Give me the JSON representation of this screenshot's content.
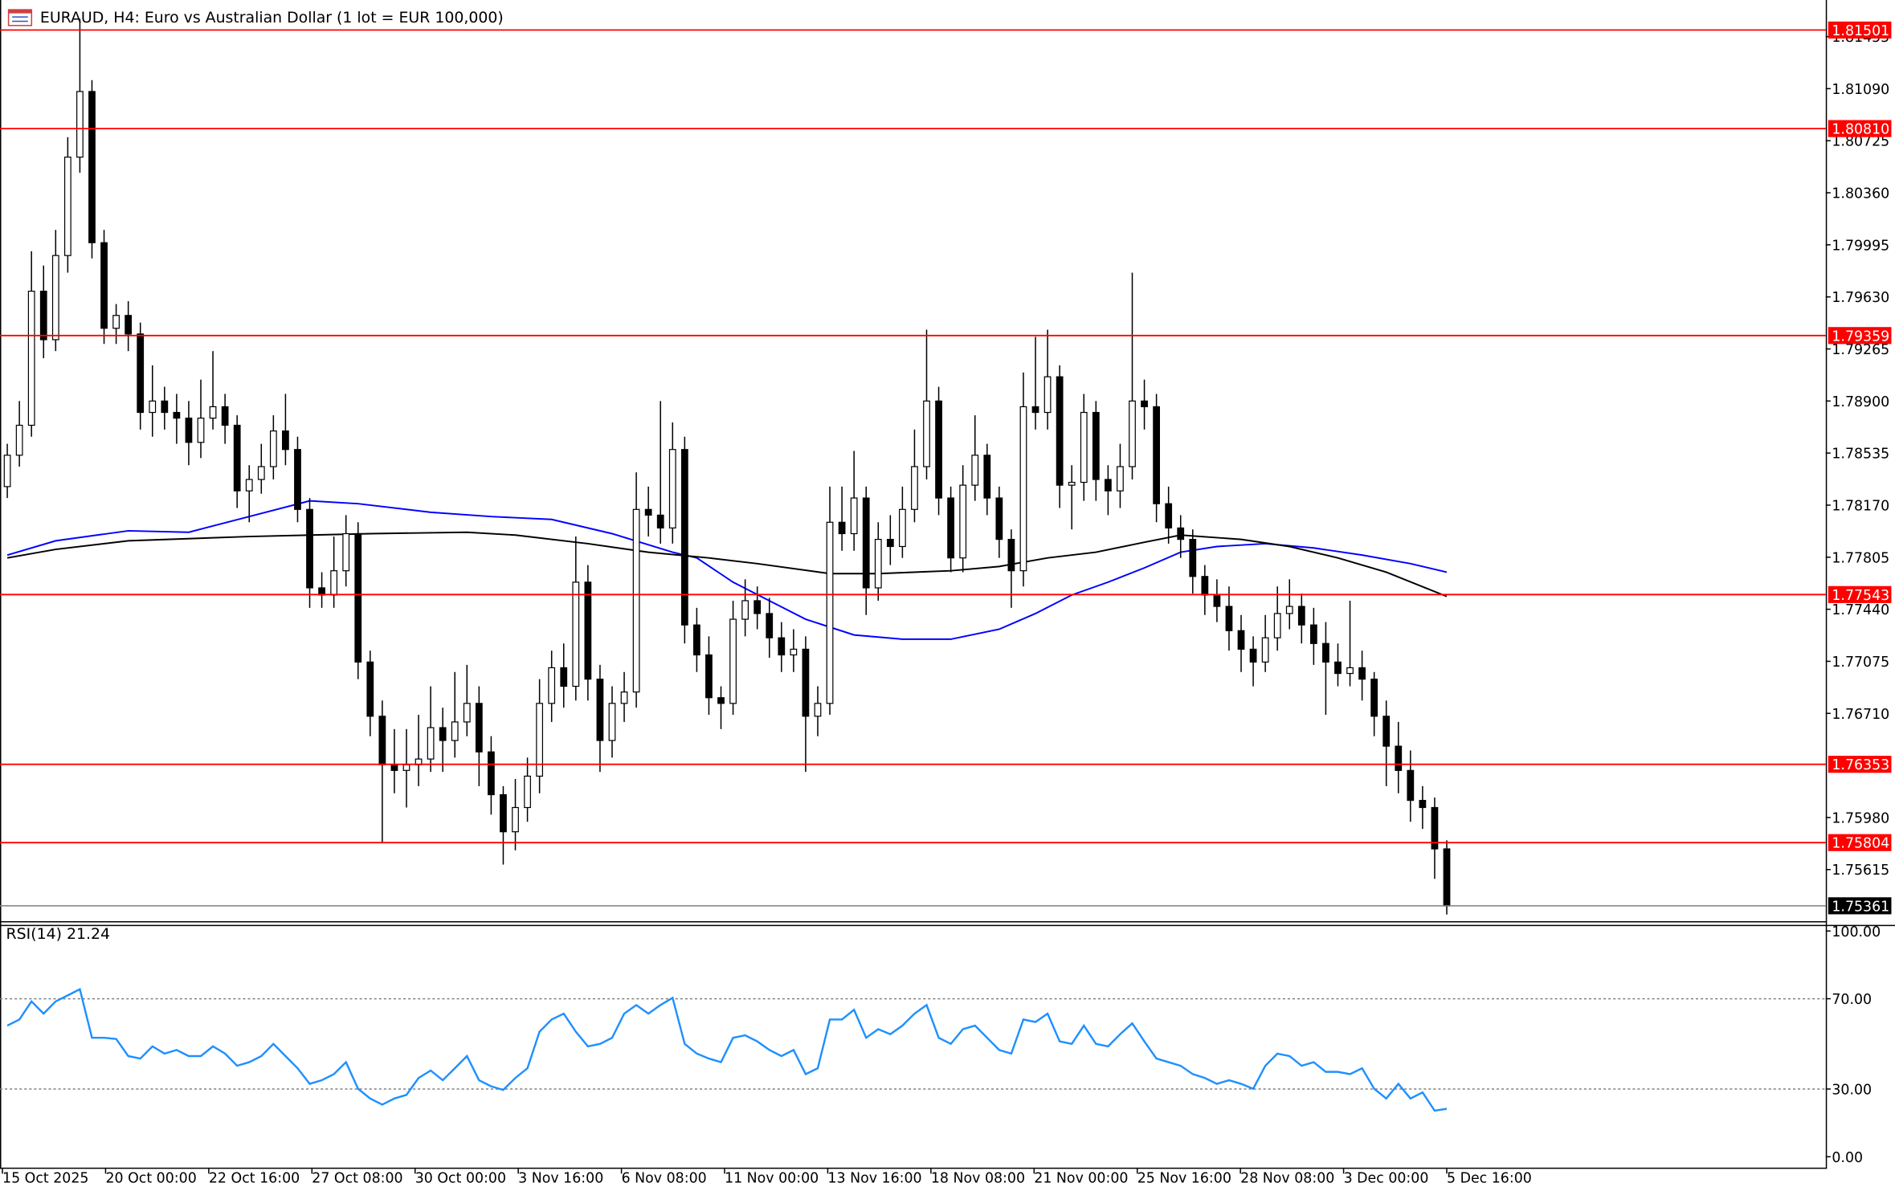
{
  "chart_data": {
    "type": "candlestick",
    "title": "EURAUD, H4:  Euro vs Australian Dollar (1 lot = EUR 100,000)",
    "up_color": "#ffffff",
    "down_color": "#000000",
    "candles": [
      [
        1.783,
        1.786,
        1.7822,
        1.7852
      ],
      [
        1.7852,
        1.789,
        1.7844,
        1.7873
      ],
      [
        1.7873,
        1.7995,
        1.7865,
        1.7967
      ],
      [
        1.7967,
        1.7985,
        1.792,
        1.7933
      ],
      [
        1.7933,
        1.801,
        1.7925,
        1.7992
      ],
      [
        1.7992,
        1.8075,
        1.798,
        1.8061
      ],
      [
        1.8061,
        1.8158,
        1.805,
        1.8107
      ],
      [
        1.8107,
        1.8115,
        1.799,
        1.8001
      ],
      [
        1.8001,
        1.801,
        1.793,
        1.7941
      ],
      [
        1.7941,
        1.7958,
        1.793,
        1.795
      ],
      [
        1.795,
        1.796,
        1.7925,
        1.7937
      ],
      [
        1.7937,
        1.7945,
        1.787,
        1.7882
      ],
      [
        1.7882,
        1.7915,
        1.7865,
        1.789
      ],
      [
        1.789,
        1.79,
        1.787,
        1.7882
      ],
      [
        1.7882,
        1.7895,
        1.786,
        1.7878
      ],
      [
        1.7878,
        1.789,
        1.7845,
        1.7861
      ],
      [
        1.7861,
        1.7905,
        1.785,
        1.7878
      ],
      [
        1.7878,
        1.7925,
        1.787,
        1.7886
      ],
      [
        1.7886,
        1.7895,
        1.786,
        1.7873
      ],
      [
        1.7873,
        1.788,
        1.7815,
        1.7827
      ],
      [
        1.7827,
        1.7845,
        1.7805,
        1.7835
      ],
      [
        1.7835,
        1.786,
        1.7825,
        1.7844
      ],
      [
        1.7844,
        1.788,
        1.7835,
        1.7869
      ],
      [
        1.7869,
        1.7895,
        1.7845,
        1.7856
      ],
      [
        1.7856,
        1.7865,
        1.7805,
        1.7814
      ],
      [
        1.7814,
        1.7822,
        1.7745,
        1.7759
      ],
      [
        1.7759,
        1.777,
        1.7745,
        1.7754
      ],
      [
        1.7754,
        1.7795,
        1.7745,
        1.7771
      ],
      [
        1.7771,
        1.781,
        1.776,
        1.7797
      ],
      [
        1.7797,
        1.7805,
        1.7695,
        1.7707
      ],
      [
        1.7707,
        1.7715,
        1.7655,
        1.7669
      ],
      [
        1.7669,
        1.768,
        1.758,
        1.7635
      ],
      [
        1.7635,
        1.766,
        1.7615,
        1.7631
      ],
      [
        1.7631,
        1.766,
        1.7605,
        1.7635
      ],
      [
        1.7635,
        1.767,
        1.762,
        1.7639
      ],
      [
        1.7639,
        1.769,
        1.763,
        1.7661
      ],
      [
        1.7661,
        1.7675,
        1.763,
        1.7652
      ],
      [
        1.7652,
        1.77,
        1.764,
        1.7665
      ],
      [
        1.7665,
        1.7705,
        1.7655,
        1.7678
      ],
      [
        1.7678,
        1.769,
        1.762,
        1.7644
      ],
      [
        1.7644,
        1.7655,
        1.76,
        1.7614
      ],
      [
        1.7614,
        1.762,
        1.7565,
        1.7588
      ],
      [
        1.7588,
        1.7625,
        1.7575,
        1.7605
      ],
      [
        1.7605,
        1.764,
        1.7595,
        1.7627
      ],
      [
        1.7627,
        1.7695,
        1.7615,
        1.7678
      ],
      [
        1.7678,
        1.7715,
        1.7665,
        1.7703
      ],
      [
        1.7703,
        1.772,
        1.7675,
        1.769
      ],
      [
        1.769,
        1.7795,
        1.768,
        1.7763
      ],
      [
        1.7763,
        1.7775,
        1.768,
        1.7695
      ],
      [
        1.7695,
        1.7705,
        1.763,
        1.7652
      ],
      [
        1.7652,
        1.769,
        1.764,
        1.7678
      ],
      [
        1.7678,
        1.77,
        1.7665,
        1.7686
      ],
      [
        1.7686,
        1.784,
        1.7675,
        1.7814
      ],
      [
        1.7814,
        1.783,
        1.7795,
        1.781
      ],
      [
        1.781,
        1.789,
        1.779,
        1.7801
      ],
      [
        1.7801,
        1.7875,
        1.779,
        1.7856
      ],
      [
        1.7856,
        1.7865,
        1.772,
        1.7733
      ],
      [
        1.7733,
        1.7745,
        1.77,
        1.7712
      ],
      [
        1.7712,
        1.7725,
        1.767,
        1.7682
      ],
      [
        1.7682,
        1.769,
        1.766,
        1.7678
      ],
      [
        1.7678,
        1.775,
        1.767,
        1.7737
      ],
      [
        1.7737,
        1.7765,
        1.7725,
        1.775
      ],
      [
        1.775,
        1.776,
        1.773,
        1.7741
      ],
      [
        1.7741,
        1.7752,
        1.771,
        1.7724
      ],
      [
        1.7724,
        1.7735,
        1.77,
        1.7712
      ],
      [
        1.7712,
        1.773,
        1.77,
        1.7716
      ],
      [
        1.7716,
        1.7725,
        1.763,
        1.7669
      ],
      [
        1.7669,
        1.769,
        1.7655,
        1.7678
      ],
      [
        1.7678,
        1.783,
        1.767,
        1.7805
      ],
      [
        1.7805,
        1.783,
        1.7785,
        1.7797
      ],
      [
        1.7797,
        1.7855,
        1.7785,
        1.7822
      ],
      [
        1.7822,
        1.783,
        1.774,
        1.7759
      ],
      [
        1.7759,
        1.7805,
        1.775,
        1.7793
      ],
      [
        1.7793,
        1.781,
        1.7775,
        1.7788
      ],
      [
        1.7788,
        1.783,
        1.778,
        1.7814
      ],
      [
        1.7814,
        1.787,
        1.7805,
        1.7844
      ],
      [
        1.7844,
        1.794,
        1.7835,
        1.789
      ],
      [
        1.789,
        1.79,
        1.781,
        1.7822
      ],
      [
        1.7822,
        1.783,
        1.777,
        1.778
      ],
      [
        1.778,
        1.7845,
        1.777,
        1.7831
      ],
      [
        1.7831,
        1.788,
        1.782,
        1.7852
      ],
      [
        1.7852,
        1.786,
        1.781,
        1.7822
      ],
      [
        1.7822,
        1.783,
        1.778,
        1.7793
      ],
      [
        1.7793,
        1.78,
        1.7745,
        1.7771
      ],
      [
        1.7771,
        1.791,
        1.776,
        1.7886
      ],
      [
        1.7886,
        1.7935,
        1.787,
        1.7882
      ],
      [
        1.7882,
        1.794,
        1.787,
        1.7907
      ],
      [
        1.7907,
        1.7915,
        1.7815,
        1.7831
      ],
      [
        1.7831,
        1.7845,
        1.78,
        1.7833
      ],
      [
        1.7833,
        1.7895,
        1.782,
        1.7882
      ],
      [
        1.7882,
        1.789,
        1.782,
        1.7835
      ],
      [
        1.7835,
        1.7845,
        1.781,
        1.7827
      ],
      [
        1.7827,
        1.786,
        1.7815,
        1.7844
      ],
      [
        1.7844,
        1.798,
        1.7835,
        1.789
      ],
      [
        1.789,
        1.7905,
        1.787,
        1.7886
      ],
      [
        1.7886,
        1.7895,
        1.7805,
        1.7818
      ],
      [
        1.7818,
        1.783,
        1.779,
        1.7801
      ],
      [
        1.7801,
        1.781,
        1.778,
        1.7793
      ],
      [
        1.7793,
        1.78,
        1.7755,
        1.7767
      ],
      [
        1.7767,
        1.7775,
        1.774,
        1.7754
      ],
      [
        1.7754,
        1.7765,
        1.7735,
        1.7746
      ],
      [
        1.7746,
        1.776,
        1.7715,
        1.7729
      ],
      [
        1.7729,
        1.774,
        1.77,
        1.7716
      ],
      [
        1.7716,
        1.7725,
        1.769,
        1.7707
      ],
      [
        1.7707,
        1.774,
        1.77,
        1.7724
      ],
      [
        1.7724,
        1.776,
        1.7715,
        1.7741
      ],
      [
        1.7741,
        1.7765,
        1.773,
        1.7746
      ],
      [
        1.7746,
        1.7755,
        1.772,
        1.7733
      ],
      [
        1.7733,
        1.7745,
        1.7705,
        1.772
      ],
      [
        1.772,
        1.7735,
        1.767,
        1.7707
      ],
      [
        1.7707,
        1.772,
        1.769,
        1.7699
      ],
      [
        1.7699,
        1.775,
        1.769,
        1.7703
      ],
      [
        1.7703,
        1.7715,
        1.768,
        1.7695
      ],
      [
        1.7695,
        1.77,
        1.7655,
        1.7669
      ],
      [
        1.7669,
        1.768,
        1.762,
        1.7648
      ],
      [
        1.7648,
        1.7665,
        1.7615,
        1.7631
      ],
      [
        1.7631,
        1.7645,
        1.7595,
        1.761
      ],
      [
        1.761,
        1.762,
        1.759,
        1.7605
      ],
      [
        1.7605,
        1.7612,
        1.7555,
        1.7576
      ],
      [
        1.7576,
        1.7582,
        1.753,
        1.7536
      ]
    ],
    "ylim": [
      1.75253,
      1.81686
    ],
    "yticks": [
      1.81455,
      {
        "value": 1.8109,
        "label": "1.81090"
      },
      1.80725,
      {
        "value": 1.8036,
        "label": "1.80360"
      },
      1.79995,
      {
        "value": 1.7963,
        "label": "1.79630"
      },
      1.79265,
      {
        "value": 1.789,
        "label": "1.78900"
      },
      1.78535,
      {
        "value": 1.7817,
        "label": "1.78170"
      },
      1.77805,
      {
        "value": 1.7744,
        "label": "1.77440"
      },
      1.77075,
      {
        "value": 1.7671,
        "label": "1.76710"
      },
      {
        "value": 1.7598,
        "label": "1.75980"
      },
      1.75615
    ],
    "levels": {
      "color": "#ff0000",
      "values": [
        1.81501,
        {
          "value": 1.8081,
          "label": "1.80810"
        },
        1.79359,
        1.77543,
        1.76353,
        1.75804
      ]
    },
    "current_price": 1.75361,
    "moving_averages": [
      {
        "color": "#0000ff",
        "x": [
          0,
          4,
          10,
          15,
          20,
          25,
          29,
          35,
          40,
          45,
          50,
          55,
          57,
          60,
          63,
          66,
          70,
          74,
          78,
          82,
          85,
          88,
          91,
          94,
          97,
          100,
          104,
          108,
          112,
          116,
          119
        ],
        "values": [
          1.7782,
          1.7792,
          1.7799,
          1.7798,
          1.7809,
          1.782,
          1.7818,
          1.7812,
          1.7809,
          1.7807,
          1.7797,
          1.7784,
          1.778,
          1.7763,
          1.775,
          1.7737,
          1.7726,
          1.7723,
          1.7723,
          1.773,
          1.7741,
          1.7754,
          1.7763,
          1.7773,
          1.7784,
          1.7788,
          1.779,
          1.7787,
          1.7782,
          1.7776,
          1.777
        ]
      },
      {
        "color": "#000000",
        "x": [
          0,
          4,
          10,
          20,
          30,
          38,
          42,
          48,
          53,
          58,
          62,
          68,
          72,
          78,
          82,
          86,
          90,
          94,
          97,
          102,
          106,
          110,
          114,
          119
        ],
        "values": [
          1.778,
          1.7786,
          1.7792,
          1.7795,
          1.7797,
          1.7798,
          1.7796,
          1.779,
          1.7784,
          1.778,
          1.7776,
          1.7769,
          1.7769,
          1.7771,
          1.7774,
          1.778,
          1.7784,
          1.7791,
          1.7796,
          1.7793,
          1.7788,
          1.778,
          1.777,
          1.7753
        ]
      }
    ],
    "x_labels": [
      "15 Oct 2025",
      "20 Oct 00:00",
      "22 Oct 16:00",
      "27 Oct 08:00",
      "30 Oct 00:00",
      "3 Nov 16:00",
      "6 Nov 08:00",
      "11 Nov 00:00",
      "13 Nov 16:00",
      "18 Nov 08:00",
      "21 Nov 00:00",
      "25 Nov 16:00",
      "28 Nov 08:00",
      "3 Dec 00:00",
      "5 Dec 16:00"
    ],
    "rsi": {
      "label": "RSI(14) 21.24",
      "color": "#1e90ff",
      "ylim": [
        -4.8,
        102.2
      ],
      "yticks": [
        {
          "value": 100,
          "label": "100.00"
        },
        {
          "value": 70,
          "label": "70.00"
        },
        {
          "value": 30,
          "label": "30.00"
        },
        {
          "value": 0,
          "label": "0.00"
        }
      ],
      "levels": [
        70,
        30
      ],
      "values": [
        58.1,
        60.8,
        68.8,
        63.4,
        68.8,
        71.5,
        74.2,
        52.7,
        52.7,
        52.2,
        44.6,
        43.5,
        48.9,
        45.7,
        47.3,
        44.6,
        44.6,
        48.9,
        45.7,
        40.3,
        41.9,
        44.6,
        50.0,
        44.6,
        39.2,
        32.3,
        33.9,
        36.6,
        41.9,
        30.1,
        25.8,
        23.1,
        25.8,
        27.4,
        34.9,
        38.2,
        33.9,
        39.2,
        44.6,
        33.9,
        31.2,
        29.6,
        34.9,
        39.2,
        55.4,
        60.8,
        63.4,
        55.4,
        48.9,
        50.0,
        52.7,
        63.4,
        67.2,
        63.4,
        67.2,
        70.4,
        50.0,
        45.7,
        43.5,
        41.9,
        52.7,
        53.8,
        51.1,
        47.3,
        44.6,
        47.3,
        36.6,
        39.2,
        60.8,
        60.8,
        65.1,
        52.7,
        56.5,
        54.3,
        58.1,
        63.4,
        67.2,
        52.7,
        50.0,
        56.5,
        58.1,
        52.7,
        47.3,
        45.7,
        60.8,
        59.7,
        63.4,
        51.1,
        50.0,
        58.1,
        50.0,
        48.9,
        54.3,
        59.1,
        51.1,
        43.5,
        41.9,
        40.3,
        36.6,
        34.9,
        32.3,
        33.9,
        32.3,
        30.1,
        40.3,
        45.7,
        44.6,
        40.3,
        41.9,
        37.6,
        37.6,
        36.6,
        39.2,
        30.1,
        25.8,
        32.3,
        25.8,
        28.5,
        20.4,
        21.24
      ]
    }
  }
}
